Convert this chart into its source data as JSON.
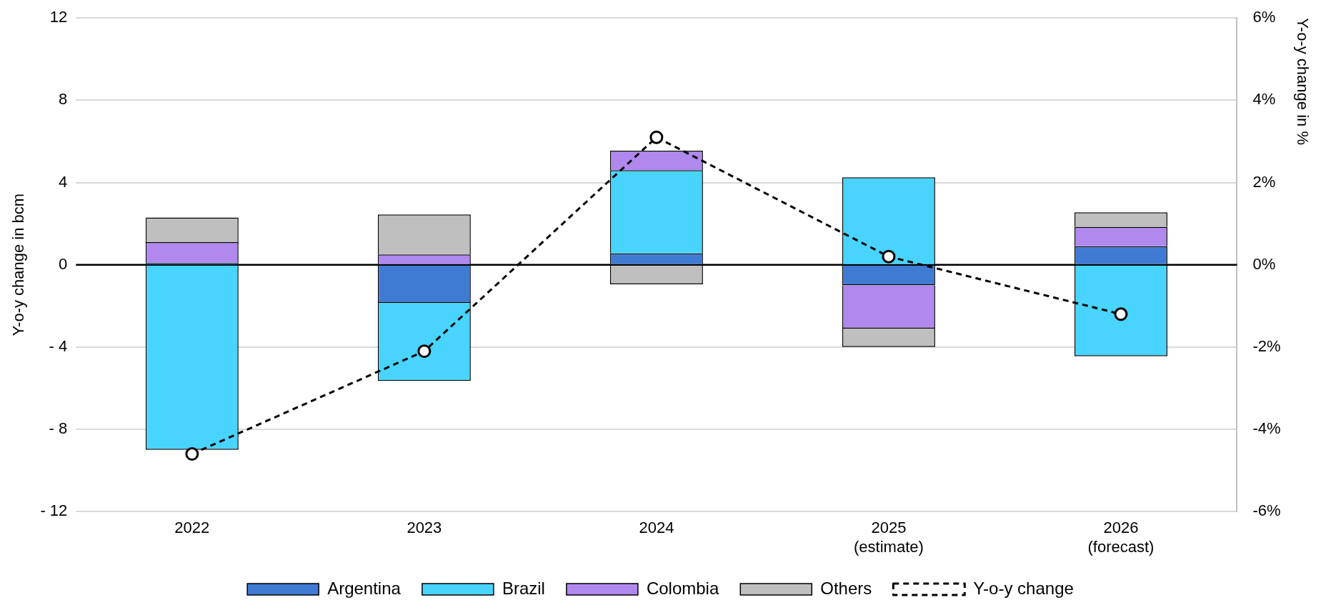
{
  "chart_data": {
    "type": "bar",
    "stacked": true,
    "ylabel": "Y-o-y change in bcm",
    "y2label": "Y-o-y change in %",
    "categories": [
      "2022",
      "2023",
      "2024",
      "2025\n(estimate)",
      "2026\n(forecast)"
    ],
    "series": [
      {
        "name": "Argentina",
        "color": "#3f7bd3",
        "values": [
          0.1,
          -1.85,
          0.55,
          -1.0,
          0.9
        ]
      },
      {
        "name": "Brazil",
        "color": "#48d4fe",
        "values": [
          -9.0,
          -3.8,
          4.05,
          4.25,
          -4.45
        ]
      },
      {
        "name": "Colombia",
        "color": "#b088ee",
        "values": [
          1.0,
          0.5,
          0.95,
          -2.1,
          0.95
        ]
      },
      {
        "name": "Others",
        "color": "#bfbfbf",
        "values": [
          1.2,
          1.95,
          -0.95,
          -0.9,
          0.7
        ]
      },
      {
        "name": "Y-o-y change",
        "type": "line",
        "axis": "y2",
        "color": "#000000",
        "marker": "circle",
        "line_style": "dashed",
        "values": [
          -4.6,
          -2.1,
          3.1,
          0.2,
          -1.2
        ]
      }
    ],
    "ylim": [
      -12,
      12
    ],
    "yticks": [
      {
        "value": -12,
        "label": "- 12"
      },
      {
        "value": -8,
        "label": "- 8"
      },
      {
        "value": -4,
        "label": "- 4"
      },
      0,
      4,
      8,
      12
    ],
    "y2lim": [
      -6,
      6
    ],
    "y2ticks": [
      {
        "value": -6,
        "label": "-6%"
      },
      {
        "value": -4,
        "label": "-4%"
      },
      {
        "value": -2,
        "label": "-2%"
      },
      {
        "value": 0,
        "label": "0%"
      },
      {
        "value": 2,
        "label": "2%"
      },
      {
        "value": 4,
        "label": "4%"
      },
      {
        "value": 6,
        "label": "6%"
      }
    ],
    "ref_lines": [
      {
        "axis": "y",
        "value": 0,
        "color": "#000000"
      }
    ],
    "grid": "y",
    "legend": "bottom"
  }
}
